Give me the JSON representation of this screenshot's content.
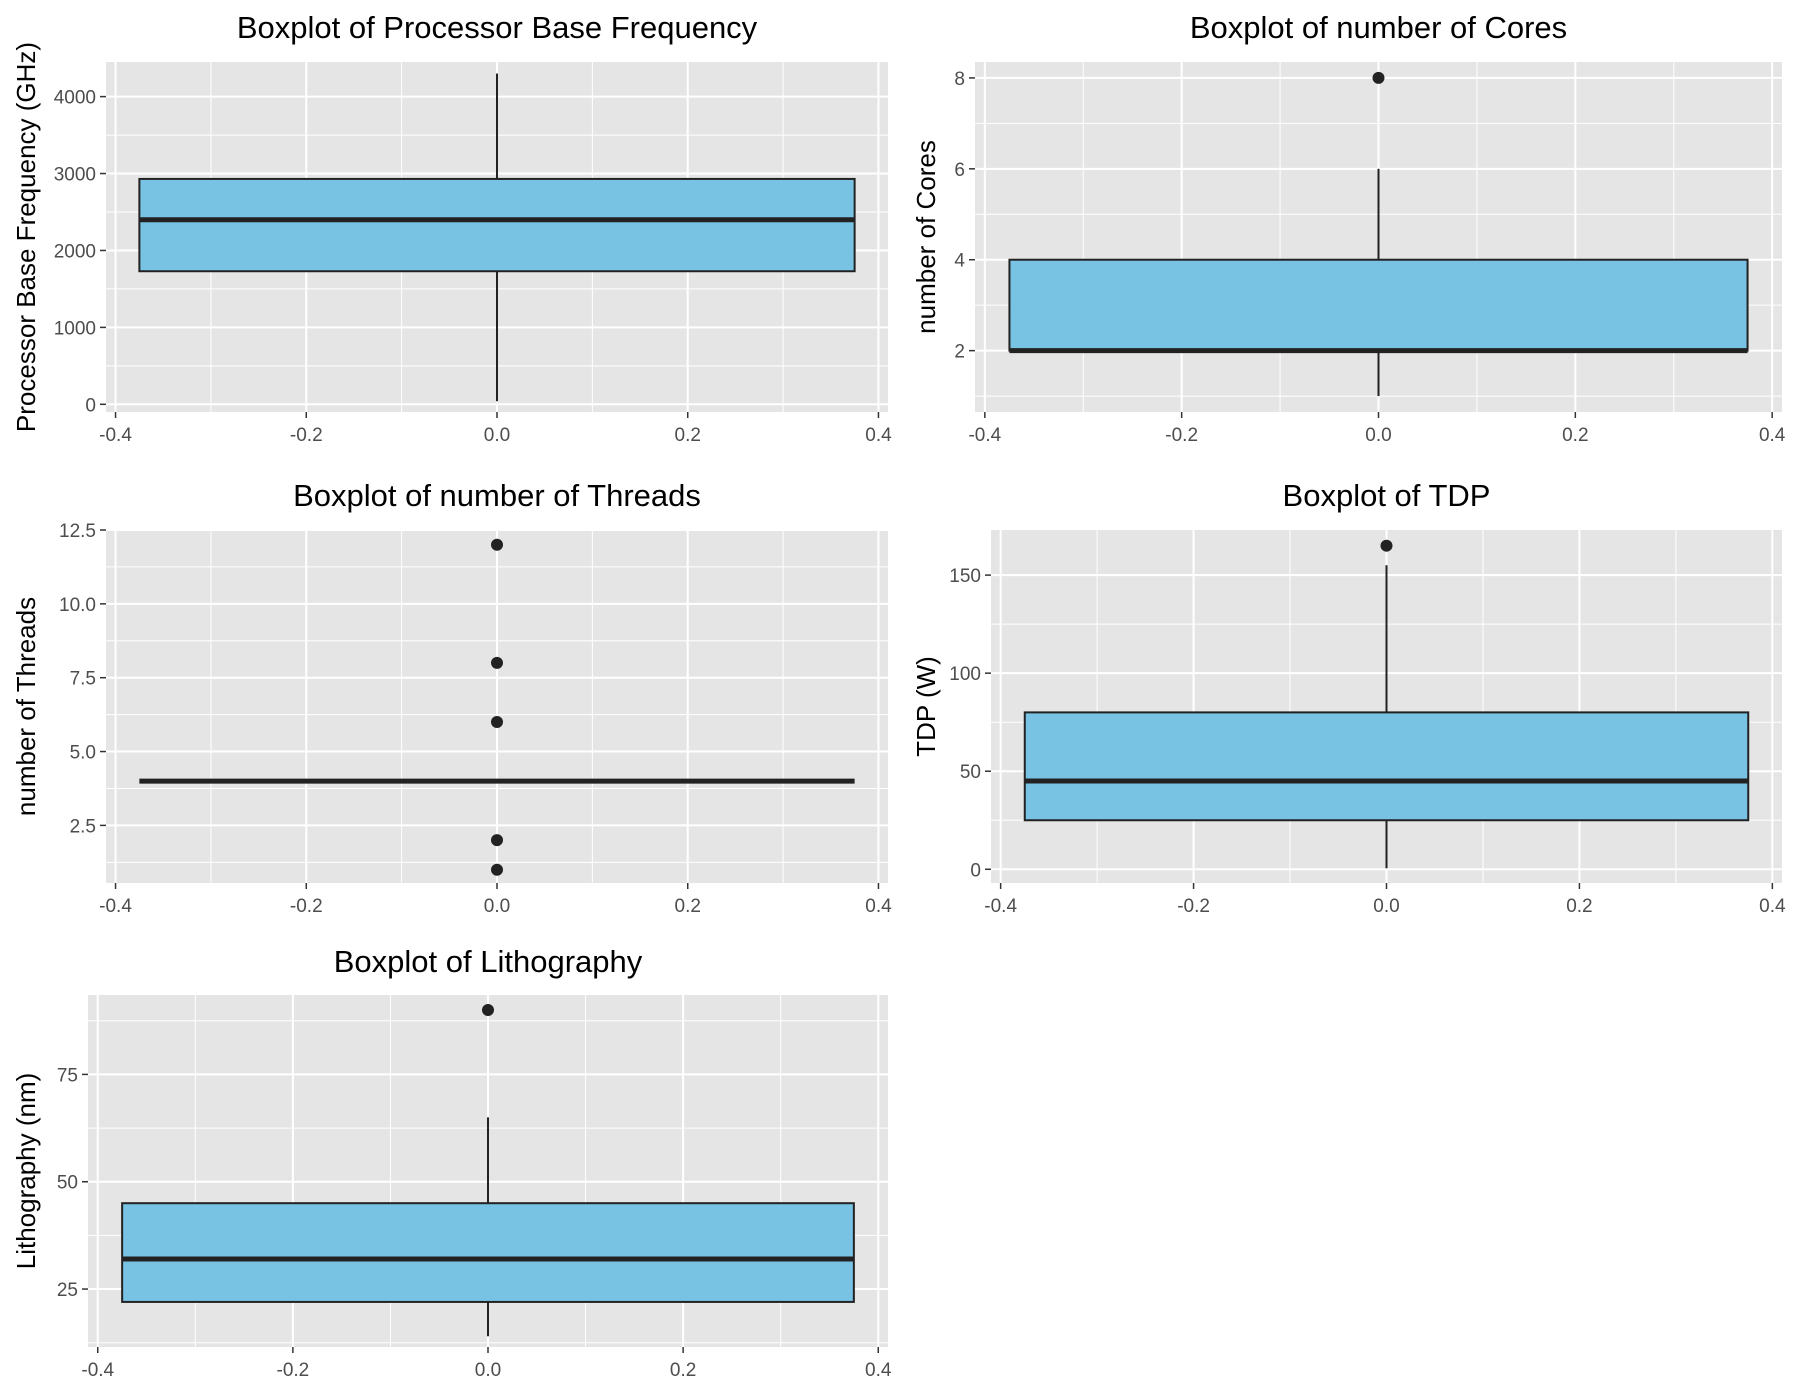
{
  "style": {
    "panel_bg": "#e5e5e5",
    "grid_color": "#ffffff",
    "box_fill": "#78c2e4",
    "box_stroke": "#222222",
    "outlier_color": "#222222",
    "tick_color": "#4d4d4d"
  },
  "chart_data": [
    {
      "type": "boxplot",
      "title": "Boxplot of Processor Base Frequency",
      "xlabel": "",
      "ylabel": "Processor Base Frequency (GHz)",
      "xlim": [
        -0.41,
        0.41
      ],
      "ylim": [
        -100,
        4450
      ],
      "x_ticks": [
        -0.4,
        -0.2,
        0.0,
        0.2,
        0.4
      ],
      "x_tick_labels": [
        "-0.4",
        "-0.2",
        "0.0",
        "0.2",
        "0.4"
      ],
      "y_ticks": [
        0,
        1000,
        2000,
        3000,
        4000
      ],
      "y_tick_labels": [
        "0",
        "1000",
        "2000",
        "3000",
        "4000"
      ],
      "grid": true,
      "box": {
        "x_center": 0,
        "width": 0.75,
        "whisker_low": 40,
        "q1": 1730,
        "median": 2400,
        "q3": 2930,
        "whisker_high": 4300,
        "outliers": []
      }
    },
    {
      "type": "boxplot",
      "title": "Boxplot of number of Cores",
      "xlabel": "",
      "ylabel": "number of Cores",
      "xlim": [
        -0.41,
        0.41
      ],
      "ylim": [
        0.65,
        8.35
      ],
      "x_ticks": [
        -0.4,
        -0.2,
        0.0,
        0.2,
        0.4
      ],
      "x_tick_labels": [
        "-0.4",
        "-0.2",
        "0.0",
        "0.2",
        "0.4"
      ],
      "y_ticks": [
        2,
        4,
        6,
        8
      ],
      "y_tick_labels": [
        "2",
        "4",
        "6",
        "8"
      ],
      "grid": true,
      "box": {
        "x_center": 0,
        "width": 0.75,
        "whisker_low": 1,
        "q1": 2,
        "median": 2,
        "q3": 4,
        "whisker_high": 6,
        "outliers": [
          8
        ]
      }
    },
    {
      "type": "boxplot",
      "title": "Boxplot of number of Threads",
      "xlabel": "",
      "ylabel": "number of Threads",
      "xlim": [
        -0.41,
        0.41
      ],
      "ylim": [
        0.55,
        12.5
      ],
      "x_ticks": [
        -0.4,
        -0.2,
        0.0,
        0.2,
        0.4
      ],
      "x_tick_labels": [
        "-0.4",
        "-0.2",
        "0.0",
        "0.2",
        "0.4"
      ],
      "y_ticks": [
        2.5,
        5.0,
        7.5,
        10.0,
        12.5
      ],
      "y_tick_labels": [
        "2.5",
        "5.0",
        "7.5",
        "10.0",
        "12.5"
      ],
      "grid": true,
      "box": {
        "x_center": 0,
        "width": 0.75,
        "whisker_low": 4,
        "q1": 4,
        "median": 4,
        "q3": 4,
        "whisker_high": 4,
        "outliers": [
          12,
          8,
          6,
          2,
          1
        ]
      }
    },
    {
      "type": "boxplot",
      "title": "Boxplot of TDP",
      "xlabel": "",
      "ylabel": "TDP (W)",
      "xlim": [
        -0.41,
        0.41
      ],
      "ylim": [
        -7,
        173
      ],
      "x_ticks": [
        -0.4,
        -0.2,
        0.0,
        0.2,
        0.4
      ],
      "x_tick_labels": [
        "-0.4",
        "-0.2",
        "0.0",
        "0.2",
        "0.4"
      ],
      "y_ticks": [
        0,
        50,
        100,
        150
      ],
      "y_tick_labels": [
        "0",
        "50",
        "100",
        "150"
      ],
      "grid": true,
      "box": {
        "x_center": 0,
        "width": 0.75,
        "whisker_low": 0.5,
        "q1": 25,
        "median": 45,
        "q3": 80,
        "whisker_high": 155,
        "outliers": [
          165
        ]
      }
    },
    {
      "type": "boxplot",
      "title": "Boxplot of Lithography",
      "xlabel": "",
      "ylabel": "Lithography (nm)",
      "xlim": [
        -0.41,
        0.41
      ],
      "ylim": [
        11.5,
        93.5
      ],
      "x_ticks": [
        -0.4,
        -0.2,
        0.0,
        0.2,
        0.4
      ],
      "x_tick_labels": [
        "-0.4",
        "-0.2",
        "0.0",
        "0.2",
        "0.4"
      ],
      "y_ticks": [
        25,
        50,
        75
      ],
      "y_tick_labels": [
        "25",
        "50",
        "75"
      ],
      "grid": true,
      "box": {
        "x_center": 0,
        "width": 0.75,
        "whisker_low": 14,
        "q1": 22,
        "median": 32,
        "q3": 45,
        "whisker_high": 65,
        "outliers": [
          90
        ]
      }
    }
  ]
}
